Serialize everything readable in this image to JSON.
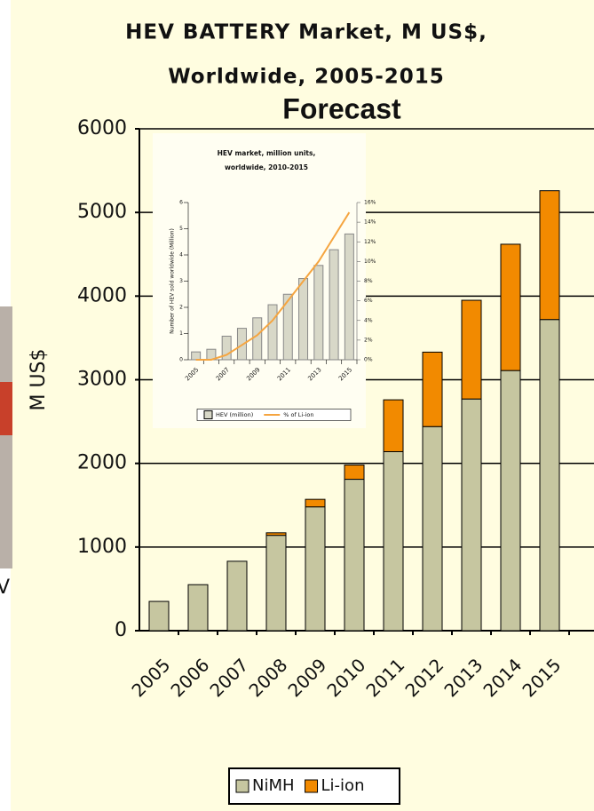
{
  "left_fragment": {
    "text": "V"
  },
  "chart_data": [
    {
      "type": "bar",
      "stacked": true,
      "title": [
        "HEV BATTERY Market, M US$,",
        "Worldwide, 2005-2015"
      ],
      "annotation": "Forecast",
      "ylabel": "M US$",
      "categories": [
        "2005",
        "2006",
        "2007",
        "2008",
        "2009",
        "2010",
        "2011",
        "2012",
        "2013",
        "2014",
        "2015"
      ],
      "series": [
        {
          "name": "NiMH",
          "color": "#c6c6a0",
          "values": [
            350,
            550,
            830,
            1140,
            1480,
            1810,
            2140,
            2440,
            2770,
            3110,
            3720
          ]
        },
        {
          "name": "Li-ion",
          "color": "#f28a00",
          "values": [
            0,
            0,
            0,
            30,
            90,
            170,
            620,
            890,
            1180,
            1510,
            1540
          ]
        }
      ],
      "ylim": [
        0,
        6000
      ],
      "yticks": [
        0,
        1000,
        2000,
        3000,
        4000,
        5000,
        6000
      ],
      "grid": true,
      "legend": "bottom"
    },
    {
      "type": "bar",
      "title": [
        "HEV market, million units,",
        "worldwide, 2010-2015"
      ],
      "ylabel": "Number of HEV sold worldwide (Million)",
      "categories": [
        "2005",
        null,
        "2007",
        null,
        "2009",
        null,
        "2011",
        null,
        "2013",
        null,
        "2015"
      ],
      "series": [
        {
          "name": "HEV (million)",
          "type": "bar",
          "color": "#d8d8c8",
          "values": [
            0.3,
            0.4,
            0.9,
            1.2,
            1.6,
            2.1,
            2.5,
            3.1,
            3.6,
            4.2,
            4.8
          ]
        },
        {
          "name": "% of Li-ion",
          "type": "line",
          "axis": "y2",
          "color": "#f5a540",
          "values": [
            0,
            0,
            0.5,
            1.5,
            2.5,
            4,
            6,
            8,
            10,
            12.5,
            15
          ]
        }
      ],
      "ylim": [
        0,
        6
      ],
      "yticks": [
        0,
        1,
        2,
        3,
        4,
        5,
        6
      ],
      "y2lim": [
        0,
        16
      ],
      "y2ticks": [
        {
          "value": 0,
          "label": "0%"
        },
        {
          "value": 2,
          "label": "2%"
        },
        {
          "value": 4,
          "label": "4%"
        },
        {
          "value": 6,
          "label": "6%"
        },
        {
          "value": 8,
          "label": "8%"
        },
        {
          "value": 10,
          "label": "10%"
        },
        {
          "value": 12,
          "label": "12%"
        },
        {
          "value": 14,
          "label": "14%"
        },
        {
          "value": 16,
          "label": "16%"
        }
      ],
      "grid": false,
      "legend": "bottom"
    }
  ]
}
